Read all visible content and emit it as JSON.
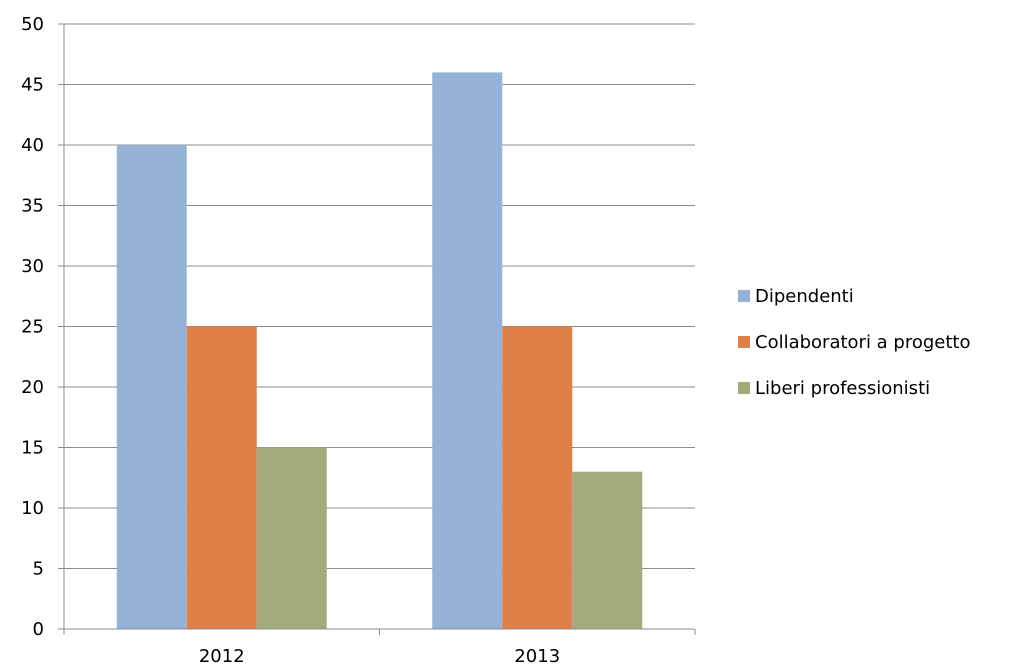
{
  "chart_data": {
    "type": "bar",
    "categories": [
      "2012",
      "2013"
    ],
    "series": [
      {
        "name": "Dipendenti",
        "values": [
          40,
          46
        ],
        "color": "#95B3D7"
      },
      {
        "name": "Collaboratori a progetto",
        "values": [
          25,
          25
        ],
        "color": "#E07F47"
      },
      {
        "name": "Liberi professionisti",
        "values": [
          15,
          13
        ],
        "color": "#A3AB7D"
      }
    ],
    "ylim": [
      0,
      50
    ],
    "yticks": [
      0,
      5,
      10,
      15,
      20,
      25,
      30,
      35,
      40,
      45,
      50
    ],
    "grid": true,
    "legend": "right",
    "title": "",
    "xlabel": "",
    "ylabel": ""
  }
}
